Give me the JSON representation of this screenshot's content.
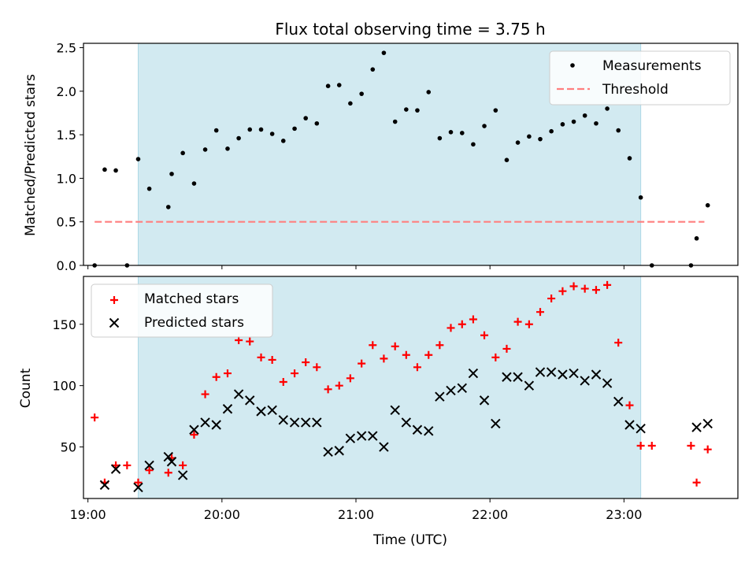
{
  "title": "Flux total observing time = 3.75 h",
  "colors": {
    "shade": "#add8e6",
    "measurements": "#000000",
    "threshold": "#ff7f7f",
    "matched": "#ff0000",
    "predicted": "#000000"
  },
  "chart_data": [
    {
      "type": "scatter",
      "ylabel": "Matched/Predicted stars",
      "xlim": [
        18.9667,
        23.85
      ],
      "ylim": [
        0,
        2.55
      ],
      "yticks": [
        "0.0",
        "0.5",
        "1.0",
        "1.5",
        "2.0",
        "2.5"
      ],
      "ytick_values": [
        0,
        0.5,
        1.0,
        1.5,
        2.0,
        2.5
      ],
      "shaded_span": [
        19.375,
        23.125
      ],
      "threshold": {
        "name": "Threshold",
        "value": 0.5,
        "x_range": [
          19.05,
          23.6
        ]
      },
      "legend": {
        "position": "top-right",
        "entries": [
          "Measurements",
          "Threshold"
        ]
      },
      "series": [
        {
          "name": "Measurements",
          "points": [
            [
              19.05,
              0.0
            ],
            [
              19.125,
              1.1
            ],
            [
              19.208,
              1.09
            ],
            [
              19.292,
              0.0
            ],
            [
              19.375,
              1.22
            ],
            [
              19.458,
              0.88
            ],
            [
              19.6,
              0.67
            ],
            [
              19.625,
              1.05
            ],
            [
              19.708,
              1.29
            ],
            [
              19.792,
              0.94
            ],
            [
              19.875,
              1.33
            ],
            [
              19.958,
              1.55
            ],
            [
              20.042,
              1.34
            ],
            [
              20.125,
              1.46
            ],
            [
              20.208,
              1.56
            ],
            [
              20.292,
              1.56
            ],
            [
              20.375,
              1.51
            ],
            [
              20.458,
              1.43
            ],
            [
              20.542,
              1.57
            ],
            [
              20.625,
              1.69
            ],
            [
              20.708,
              1.63
            ],
            [
              20.792,
              2.06
            ],
            [
              20.875,
              2.07
            ],
            [
              20.958,
              1.86
            ],
            [
              21.042,
              1.97
            ],
            [
              21.125,
              2.25
            ],
            [
              21.208,
              2.44
            ],
            [
              21.292,
              1.65
            ],
            [
              21.375,
              1.79
            ],
            [
              21.458,
              1.78
            ],
            [
              21.542,
              1.99
            ],
            [
              21.625,
              1.46
            ],
            [
              21.708,
              1.53
            ],
            [
              21.792,
              1.52
            ],
            [
              21.875,
              1.39
            ],
            [
              21.958,
              1.6
            ],
            [
              22.042,
              1.78
            ],
            [
              22.125,
              1.21
            ],
            [
              22.208,
              1.41
            ],
            [
              22.292,
              1.48
            ],
            [
              22.375,
              1.45
            ],
            [
              22.458,
              1.54
            ],
            [
              22.542,
              1.62
            ],
            [
              22.625,
              1.65
            ],
            [
              22.708,
              1.72
            ],
            [
              22.792,
              1.63
            ],
            [
              22.875,
              1.8
            ],
            [
              22.958,
              1.55
            ],
            [
              23.042,
              1.23
            ],
            [
              23.125,
              0.78
            ],
            [
              23.208,
              0.0
            ],
            [
              23.5,
              0.0
            ],
            [
              23.542,
              0.31
            ],
            [
              23.625,
              0.69
            ]
          ]
        }
      ]
    },
    {
      "type": "scatter",
      "xlabel": "Time (UTC)",
      "ylabel": "Count",
      "xlim": [
        18.9667,
        23.85
      ],
      "ylim": [
        8,
        189
      ],
      "xticks": [
        "19:00",
        "20:00",
        "21:00",
        "22:00",
        "23:00"
      ],
      "xtick_values": [
        19,
        20,
        21,
        22,
        23
      ],
      "yticks": [
        "50",
        "100",
        "150"
      ],
      "ytick_values": [
        50,
        100,
        150
      ],
      "shaded_span": [
        19.375,
        23.125
      ],
      "legend": {
        "position": "top-left",
        "entries": [
          "Matched stars",
          "Predicted stars"
        ]
      },
      "series": [
        {
          "name": "Matched stars",
          "marker": "+",
          "points": [
            [
              19.05,
              74
            ],
            [
              19.125,
              21
            ],
            [
              19.208,
              35
            ],
            [
              19.292,
              35
            ],
            [
              19.375,
              21
            ],
            [
              19.458,
              31
            ],
            [
              19.6,
              29
            ],
            [
              19.625,
              41
            ],
            [
              19.708,
              35
            ],
            [
              19.792,
              60
            ],
            [
              19.875,
              93
            ],
            [
              19.958,
              107
            ],
            [
              20.042,
              110
            ],
            [
              20.125,
              137
            ],
            [
              20.208,
              136
            ],
            [
              20.292,
              123
            ],
            [
              20.375,
              121
            ],
            [
              20.458,
              103
            ],
            [
              20.542,
              110
            ],
            [
              20.625,
              119
            ],
            [
              20.708,
              115
            ],
            [
              20.792,
              97
            ],
            [
              20.875,
              100
            ],
            [
              20.958,
              106
            ],
            [
              21.042,
              118
            ],
            [
              21.125,
              133
            ],
            [
              21.208,
              122
            ],
            [
              21.292,
              132
            ],
            [
              21.375,
              125
            ],
            [
              21.458,
              115
            ],
            [
              21.542,
              125
            ],
            [
              21.625,
              133
            ],
            [
              21.708,
              147
            ],
            [
              21.792,
              150
            ],
            [
              21.875,
              154
            ],
            [
              21.958,
              141
            ],
            [
              22.042,
              123
            ],
            [
              22.125,
              130
            ],
            [
              22.208,
              152
            ],
            [
              22.292,
              150
            ],
            [
              22.375,
              160
            ],
            [
              22.458,
              171
            ],
            [
              22.542,
              177
            ],
            [
              22.625,
              181
            ],
            [
              22.708,
              179
            ],
            [
              22.792,
              178
            ],
            [
              22.875,
              182
            ],
            [
              22.958,
              135
            ],
            [
              23.042,
              84
            ],
            [
              23.125,
              51
            ],
            [
              23.208,
              51
            ],
            [
              23.5,
              51
            ],
            [
              23.542,
              21
            ],
            [
              23.625,
              48
            ]
          ]
        },
        {
          "name": "Predicted stars",
          "marker": "x",
          "points": [
            [
              19.125,
              19
            ],
            [
              19.208,
              32
            ],
            [
              19.375,
              17
            ],
            [
              19.458,
              35
            ],
            [
              19.6,
              42
            ],
            [
              19.625,
              38
            ],
            [
              19.708,
              27
            ],
            [
              19.792,
              64
            ],
            [
              19.875,
              70
            ],
            [
              19.958,
              68
            ],
            [
              20.042,
              81
            ],
            [
              20.125,
              93
            ],
            [
              20.208,
              88
            ],
            [
              20.292,
              79
            ],
            [
              20.375,
              80
            ],
            [
              20.458,
              72
            ],
            [
              20.542,
              70
            ],
            [
              20.625,
              70
            ],
            [
              20.708,
              70
            ],
            [
              20.792,
              46
            ],
            [
              20.875,
              47
            ],
            [
              20.958,
              57
            ],
            [
              21.042,
              59
            ],
            [
              21.125,
              59
            ],
            [
              21.208,
              50
            ],
            [
              21.292,
              80
            ],
            [
              21.375,
              70
            ],
            [
              21.458,
              64
            ],
            [
              21.542,
              63
            ],
            [
              21.625,
              91
            ],
            [
              21.708,
              96
            ],
            [
              21.792,
              98
            ],
            [
              21.875,
              110
            ],
            [
              21.958,
              88
            ],
            [
              22.042,
              69
            ],
            [
              22.125,
              107
            ],
            [
              22.208,
              107
            ],
            [
              22.292,
              100
            ],
            [
              22.375,
              111
            ],
            [
              22.458,
              111
            ],
            [
              22.542,
              109
            ],
            [
              22.625,
              110
            ],
            [
              22.708,
              104
            ],
            [
              22.792,
              109
            ],
            [
              22.875,
              102
            ],
            [
              22.958,
              87
            ],
            [
              23.042,
              68
            ],
            [
              23.125,
              65
            ],
            [
              23.542,
              66
            ],
            [
              23.625,
              69
            ]
          ]
        }
      ]
    }
  ]
}
